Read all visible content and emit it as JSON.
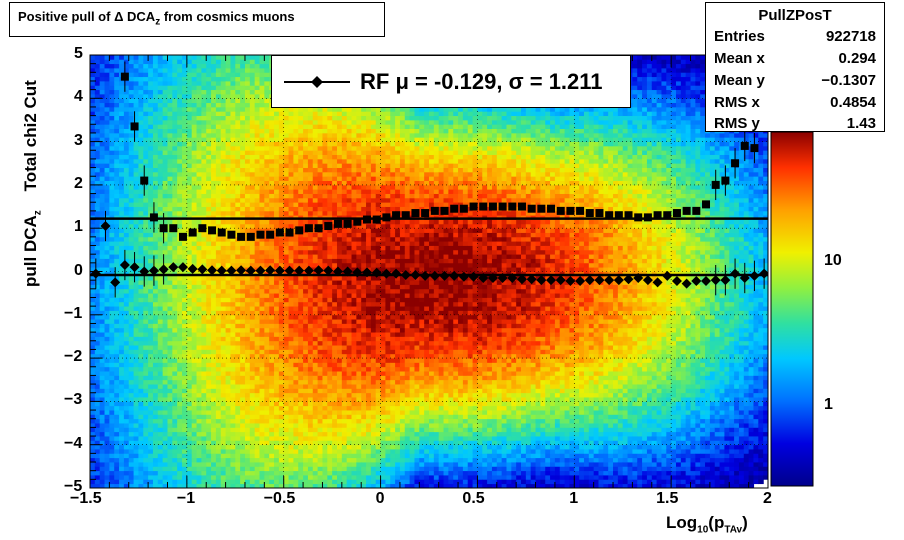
{
  "title": {
    "prefix": "Positive pull of ",
    "delta": "Δ",
    "main": " DCA",
    "sub": "z",
    "suffix": " from cosmics muons"
  },
  "stats": {
    "name": "PullZPosT",
    "rows": [
      {
        "key": "Entries",
        "value": "922718"
      },
      {
        "key": "Mean x",
        "value": "0.294"
      },
      {
        "key": "Mean y",
        "value": "−0.1307"
      },
      {
        "key": "RMS x",
        "value": "0.4854"
      },
      {
        "key": "RMS y",
        "value": "1.43"
      }
    ]
  },
  "legend": {
    "label": "RF μ = -0.129, σ =   1.211"
  },
  "axes": {
    "ylabel_main": "pull DCA",
    "ylabel_sub": "z",
    "ylabel_extra": "Total chi2 Cut",
    "xlabel_main": "Log",
    "xlabel_sub1": "10",
    "xlabel_mid": "(p",
    "xlabel_sub2": "TAv",
    "xlabel_end": ")"
  },
  "colors": {
    "marker": "#000000",
    "frame": "#000000",
    "palette_low": "#00008b",
    "palette_high": "#8b0000"
  },
  "chart_data": {
    "type": "heatmap",
    "title": "Positive pull of Δ DCAz from cosmics muons",
    "xlabel": "Log10(pTAv)",
    "ylabel": "pull DCAz  Total chi2 Cut",
    "xlim": [
      -1.5,
      2
    ],
    "ylim": [
      -5,
      5
    ],
    "x_ticks": [
      "−1.5",
      "−1",
      "−0.5",
      "0",
      "0.5",
      "1",
      "1.5",
      "2"
    ],
    "y_ticks": [
      "5",
      "4",
      "3",
      "2",
      "1",
      "0",
      "−1",
      "−2",
      "−3",
      "−4",
      "−5"
    ],
    "z_scale": "log",
    "z_ticks": [
      "10",
      "1"
    ],
    "grid": true,
    "density": {
      "mean_x": 0.294,
      "mean_y": -0.1307,
      "rms_x": 0.4854,
      "rms_y": 1.43
    },
    "series": [
      {
        "name": "RF μ = -0.129, σ =   1.211",
        "marker": "diamond",
        "x": [
          -1.47,
          -1.42,
          -1.37,
          -1.32,
          -1.27,
          -1.22,
          -1.17,
          -1.12,
          -1.07,
          -1.02,
          -0.97,
          -0.92,
          -0.87,
          -0.82,
          -0.77,
          -0.72,
          -0.67,
          -0.62,
          -0.57,
          -0.52,
          -0.47,
          -0.42,
          -0.37,
          -0.32,
          -0.27,
          -0.22,
          -0.17,
          -0.12,
          -0.07,
          -0.02,
          0.03,
          0.08,
          0.13,
          0.18,
          0.23,
          0.28,
          0.33,
          0.38,
          0.43,
          0.48,
          0.53,
          0.58,
          0.63,
          0.68,
          0.73,
          0.78,
          0.83,
          0.88,
          0.93,
          0.98,
          1.03,
          1.08,
          1.13,
          1.18,
          1.23,
          1.28,
          1.33,
          1.38,
          1.43,
          1.48,
          1.53,
          1.58,
          1.63,
          1.68,
          1.73,
          1.78,
          1.83,
          1.88,
          1.93,
          1.98
        ],
        "y": [
          -0.05,
          1.05,
          -0.25,
          0.15,
          0.1,
          0.0,
          0.02,
          0.05,
          0.1,
          0.1,
          0.06,
          0.05,
          0.03,
          0.02,
          0.02,
          0.03,
          0.02,
          0.02,
          0.03,
          0.02,
          0.02,
          0.02,
          0.02,
          0.03,
          0.02,
          0.0,
          0.0,
          -0.02,
          -0.02,
          -0.03,
          -0.05,
          -0.05,
          -0.08,
          -0.08,
          -0.1,
          -0.1,
          -0.1,
          -0.1,
          -0.12,
          -0.12,
          -0.15,
          -0.15,
          -0.15,
          -0.15,
          -0.18,
          -0.18,
          -0.2,
          -0.2,
          -0.2,
          -0.22,
          -0.22,
          -0.2,
          -0.2,
          -0.2,
          -0.2,
          -0.18,
          -0.15,
          -0.2,
          -0.25,
          -0.1,
          -0.22,
          -0.28,
          -0.22,
          -0.22,
          -0.2,
          -0.2,
          -0.05,
          -0.15,
          -0.1,
          -0.05
        ]
      },
      {
        "name": "",
        "marker": "square",
        "x": [
          -1.32,
          -1.27,
          -1.22,
          -1.17,
          -1.12,
          -1.07,
          -1.02,
          -0.97,
          -0.92,
          -0.87,
          -0.82,
          -0.77,
          -0.72,
          -0.67,
          -0.62,
          -0.57,
          -0.52,
          -0.47,
          -0.42,
          -0.37,
          -0.32,
          -0.27,
          -0.22,
          -0.17,
          -0.12,
          -0.07,
          -0.02,
          0.03,
          0.08,
          0.13,
          0.18,
          0.23,
          0.28,
          0.33,
          0.38,
          0.43,
          0.48,
          0.53,
          0.58,
          0.63,
          0.68,
          0.73,
          0.78,
          0.83,
          0.88,
          0.93,
          0.98,
          1.03,
          1.08,
          1.13,
          1.18,
          1.23,
          1.28,
          1.33,
          1.38,
          1.43,
          1.48,
          1.53,
          1.58,
          1.63,
          1.68,
          1.73,
          1.78,
          1.83,
          1.88,
          1.93
        ],
        "y": [
          4.5,
          3.35,
          2.1,
          1.25,
          1.0,
          1.0,
          0.8,
          0.9,
          1.0,
          0.95,
          0.9,
          0.85,
          0.8,
          0.8,
          0.85,
          0.85,
          0.9,
          0.9,
          0.95,
          1.0,
          1.0,
          1.05,
          1.1,
          1.1,
          1.15,
          1.2,
          1.2,
          1.25,
          1.3,
          1.3,
          1.35,
          1.35,
          1.4,
          1.4,
          1.45,
          1.45,
          1.5,
          1.5,
          1.5,
          1.5,
          1.5,
          1.5,
          1.45,
          1.45,
          1.45,
          1.4,
          1.4,
          1.4,
          1.35,
          1.35,
          1.3,
          1.3,
          1.3,
          1.25,
          1.25,
          1.3,
          1.3,
          1.35,
          1.4,
          1.4,
          1.55,
          2.0,
          2.1,
          2.5,
          2.9,
          2.85
        ]
      }
    ],
    "fit_lines": [
      {
        "y": 1.22
      },
      {
        "y": -0.08
      }
    ]
  }
}
